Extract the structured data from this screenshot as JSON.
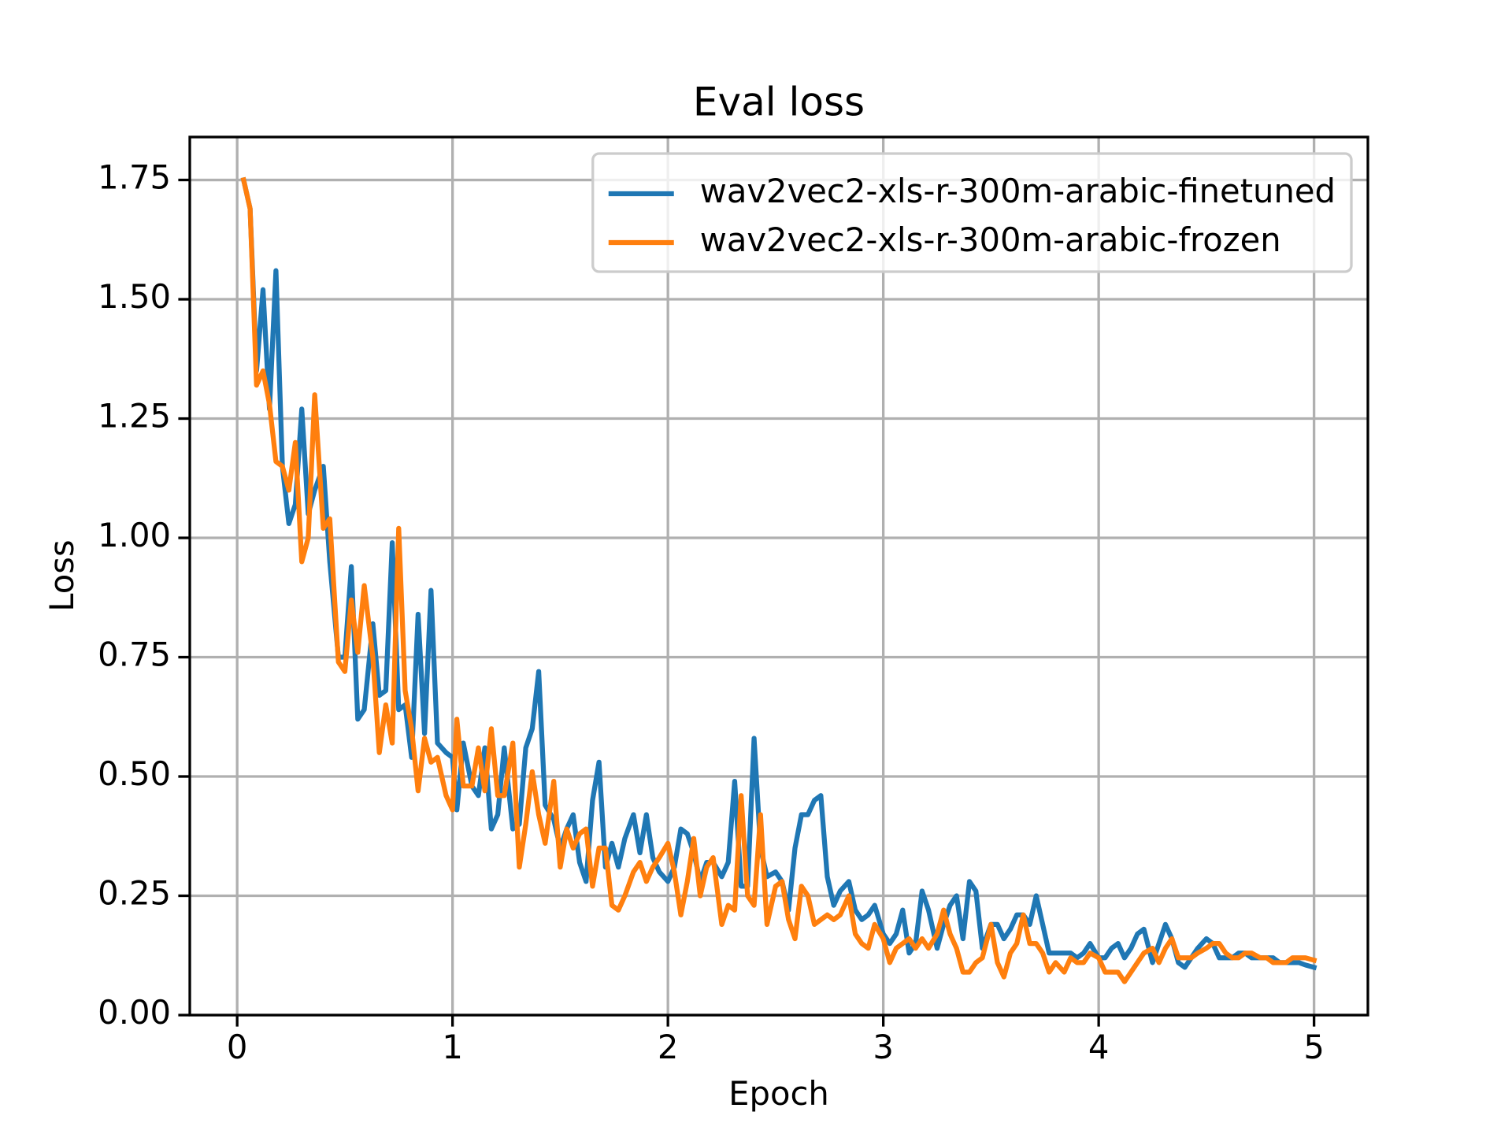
{
  "chart_data": {
    "type": "line",
    "title": "Eval loss",
    "x_label": "Epoch",
    "y_label": "Loss",
    "x": [
      0.03,
      0.06,
      0.09,
      0.12,
      0.15,
      0.18,
      0.21,
      0.24,
      0.27,
      0.3,
      0.33,
      0.36,
      0.4,
      0.43,
      0.47,
      0.5,
      0.53,
      0.56,
      0.59,
      0.63,
      0.66,
      0.69,
      0.72,
      0.75,
      0.78,
      0.81,
      0.84,
      0.87,
      0.9,
      0.93,
      0.97,
      1.0,
      1.02,
      1.05,
      1.09,
      1.12,
      1.15,
      1.18,
      1.21,
      1.24,
      1.28,
      1.31,
      1.34,
      1.37,
      1.4,
      1.43,
      1.47,
      1.5,
      1.53,
      1.56,
      1.59,
      1.62,
      1.65,
      1.68,
      1.71,
      1.74,
      1.77,
      1.8,
      1.84,
      1.87,
      1.9,
      1.93,
      1.96,
      2.0,
      2.03,
      2.06,
      2.09,
      2.12,
      2.15,
      2.18,
      2.21,
      2.25,
      2.28,
      2.31,
      2.34,
      2.37,
      2.4,
      2.43,
      2.46,
      2.5,
      2.53,
      2.56,
      2.59,
      2.62,
      2.65,
      2.68,
      2.71,
      2.74,
      2.77,
      2.8,
      2.84,
      2.87,
      2.9,
      2.93,
      2.96,
      3.0,
      3.03,
      3.06,
      3.09,
      3.12,
      3.15,
      3.18,
      3.21,
      3.25,
      3.28,
      3.31,
      3.34,
      3.37,
      3.4,
      3.43,
      3.46,
      3.5,
      3.53,
      3.56,
      3.59,
      3.62,
      3.65,
      3.68,
      3.71,
      3.74,
      3.77,
      3.8,
      3.84,
      3.87,
      3.9,
      3.93,
      3.96,
      4.0,
      4.03,
      4.06,
      4.09,
      4.12,
      4.15,
      4.18,
      4.21,
      4.25,
      4.28,
      4.31,
      4.34,
      4.37,
      4.4,
      4.43,
      4.46,
      4.5,
      4.53,
      4.56,
      4.59,
      4.62,
      4.65,
      4.68,
      4.71,
      4.75,
      4.78,
      4.81,
      4.84,
      4.87,
      4.9,
      4.93,
      4.96,
      5.0
    ],
    "series": [
      {
        "name": "wav2vec2-xls-r-300m-arabic-finetuned",
        "color": "#1f77b4",
        "values": [
          1.75,
          1.69,
          1.35,
          1.52,
          1.27,
          1.56,
          1.15,
          1.03,
          1.07,
          1.27,
          1.05,
          1.1,
          1.15,
          0.95,
          0.75,
          0.75,
          0.94,
          0.62,
          0.64,
          0.82,
          0.67,
          0.68,
          0.99,
          0.64,
          0.65,
          0.54,
          0.84,
          0.59,
          0.89,
          0.57,
          0.55,
          0.54,
          0.43,
          0.57,
          0.48,
          0.46,
          0.56,
          0.39,
          0.42,
          0.56,
          0.39,
          0.4,
          0.56,
          0.6,
          0.72,
          0.44,
          0.41,
          0.35,
          0.39,
          0.42,
          0.32,
          0.28,
          0.45,
          0.53,
          0.31,
          0.36,
          0.31,
          0.37,
          0.42,
          0.34,
          0.42,
          0.33,
          0.3,
          0.28,
          0.31,
          0.39,
          0.38,
          0.34,
          0.28,
          0.32,
          0.32,
          0.29,
          0.32,
          0.49,
          0.27,
          0.27,
          0.58,
          0.35,
          0.29,
          0.3,
          0.28,
          0.22,
          0.35,
          0.42,
          0.42,
          0.45,
          0.46,
          0.29,
          0.23,
          0.26,
          0.28,
          0.22,
          0.2,
          0.21,
          0.23,
          0.17,
          0.15,
          0.17,
          0.22,
          0.13,
          0.15,
          0.26,
          0.22,
          0.14,
          0.19,
          0.23,
          0.25,
          0.16,
          0.28,
          0.26,
          0.14,
          0.19,
          0.19,
          0.16,
          0.18,
          0.21,
          0.21,
          0.19,
          0.25,
          0.19,
          0.13,
          0.13,
          0.13,
          0.13,
          0.12,
          0.13,
          0.15,
          0.12,
          0.12,
          0.14,
          0.15,
          0.12,
          0.14,
          0.17,
          0.18,
          0.11,
          0.15,
          0.19,
          0.16,
          0.11,
          0.1,
          0.12,
          0.14,
          0.16,
          0.15,
          0.12,
          0.12,
          0.12,
          0.13,
          0.13,
          0.12,
          0.12,
          0.12,
          0.12,
          0.11,
          0.11,
          0.11,
          0.11,
          0.105,
          0.1
        ]
      },
      {
        "name": "wav2vec2-xls-r-300m-arabic-frozen",
        "color": "#ff7f0e",
        "values": [
          1.75,
          1.69,
          1.32,
          1.35,
          1.28,
          1.16,
          1.15,
          1.1,
          1.2,
          0.95,
          1.0,
          1.3,
          1.02,
          1.04,
          0.74,
          0.72,
          0.87,
          0.76,
          0.9,
          0.75,
          0.55,
          0.65,
          0.57,
          1.02,
          0.68,
          0.6,
          0.47,
          0.58,
          0.53,
          0.54,
          0.46,
          0.43,
          0.62,
          0.48,
          0.48,
          0.56,
          0.47,
          0.6,
          0.46,
          0.46,
          0.57,
          0.31,
          0.4,
          0.51,
          0.42,
          0.36,
          0.49,
          0.31,
          0.39,
          0.35,
          0.38,
          0.39,
          0.27,
          0.35,
          0.35,
          0.23,
          0.22,
          0.25,
          0.3,
          0.32,
          0.28,
          0.31,
          0.33,
          0.36,
          0.3,
          0.21,
          0.28,
          0.37,
          0.25,
          0.31,
          0.33,
          0.19,
          0.23,
          0.22,
          0.46,
          0.25,
          0.23,
          0.42,
          0.19,
          0.27,
          0.28,
          0.2,
          0.16,
          0.27,
          0.25,
          0.19,
          0.2,
          0.21,
          0.2,
          0.21,
          0.25,
          0.17,
          0.15,
          0.14,
          0.19,
          0.16,
          0.11,
          0.14,
          0.15,
          0.16,
          0.14,
          0.16,
          0.14,
          0.17,
          0.22,
          0.17,
          0.14,
          0.09,
          0.09,
          0.11,
          0.12,
          0.19,
          0.11,
          0.08,
          0.13,
          0.15,
          0.21,
          0.15,
          0.15,
          0.13,
          0.09,
          0.11,
          0.09,
          0.12,
          0.11,
          0.11,
          0.13,
          0.12,
          0.09,
          0.09,
          0.09,
          0.07,
          0.09,
          0.11,
          0.13,
          0.14,
          0.11,
          0.14,
          0.16,
          0.12,
          0.12,
          0.12,
          0.13,
          0.14,
          0.15,
          0.15,
          0.13,
          0.12,
          0.12,
          0.13,
          0.13,
          0.12,
          0.12,
          0.11,
          0.11,
          0.11,
          0.12,
          0.12,
          0.12,
          0.115
        ]
      }
    ],
    "xlim": [
      -0.22,
      5.25
    ],
    "ylim": [
      0,
      1.84
    ],
    "xticks": [
      0,
      1,
      2,
      3,
      4,
      5
    ],
    "yticks": [
      {
        "value": 0,
        "label": "0.00"
      },
      {
        "value": 0.25,
        "label": "0.25"
      },
      {
        "value": 0.5,
        "label": "0.50"
      },
      {
        "value": 0.75,
        "label": "0.75"
      },
      {
        "value": 1,
        "label": "1.00"
      },
      {
        "value": 1.25,
        "label": "1.25"
      },
      {
        "value": 1.5,
        "label": "1.50"
      },
      {
        "value": 1.75,
        "label": "1.75"
      }
    ],
    "grid": true,
    "legend": "upper right"
  }
}
